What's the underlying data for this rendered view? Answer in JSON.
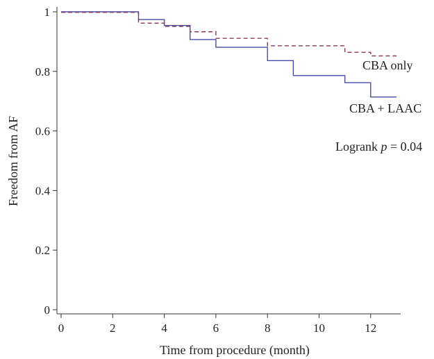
{
  "chart_data": {
    "type": "line",
    "title": "",
    "xlabel": "Time from procedure (month)",
    "ylabel": "Freedom from AF",
    "xlim": [
      0,
      13.5
    ],
    "ylim": [
      0,
      1
    ],
    "x_ticks": [
      0,
      2,
      4,
      6,
      8,
      10,
      12
    ],
    "y_ticks": [
      0,
      0.2,
      0.4,
      0.6,
      0.8,
      1
    ],
    "y_tick_labels": [
      "0",
      "0.2",
      "0.4",
      "0.6",
      "0.8",
      "1"
    ],
    "grid": false,
    "step": true,
    "series": [
      {
        "name": "CBA + LAAC",
        "color": "#4a4aa8",
        "dash": "solid",
        "x": [
          0,
          3,
          4,
          5,
          6,
          8,
          9,
          11,
          12,
          13
        ],
        "y": [
          1.0,
          0.974,
          0.954,
          0.907,
          0.881,
          0.836,
          0.786,
          0.762,
          0.714,
          0.714
        ]
      },
      {
        "name": "CBA only",
        "color": "#8b3a52",
        "dash": "dashed",
        "x": [
          0,
          3,
          4,
          5,
          6,
          8,
          11,
          12,
          13
        ],
        "y": [
          0.998,
          0.962,
          0.951,
          0.933,
          0.911,
          0.886,
          0.864,
          0.852,
          0.852
        ]
      }
    ],
    "annotations": {
      "logrank_prefix": "Logrank ",
      "logrank_p": "p",
      "logrank_suffix": " = 0.04"
    }
  }
}
